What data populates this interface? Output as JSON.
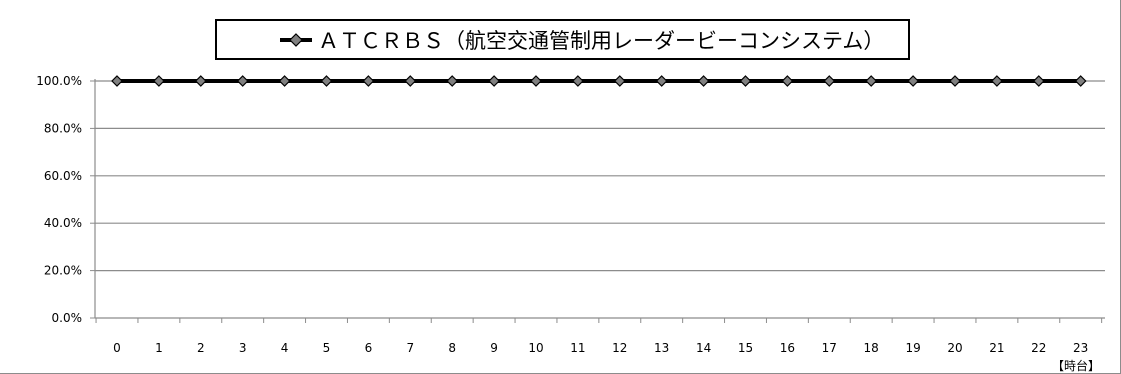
{
  "chart_data": {
    "type": "line",
    "title": "",
    "legend_position": "top",
    "grid": true,
    "xlabel": "【時台】",
    "ylabel": "",
    "categories": [
      "0",
      "1",
      "2",
      "3",
      "4",
      "5",
      "6",
      "7",
      "8",
      "9",
      "10",
      "11",
      "12",
      "13",
      "14",
      "15",
      "16",
      "17",
      "18",
      "19",
      "20",
      "21",
      "22",
      "23"
    ],
    "y_ticks": [
      "0.0%",
      "20.0%",
      "40.0%",
      "60.0%",
      "80.0%",
      "100.0%"
    ],
    "ylim": [
      0,
      100
    ],
    "series": [
      {
        "name": "ＡＴＣＲＢＳ（航空交通管制用レーダービーコンシステム）",
        "values": [
          100,
          100,
          100,
          100,
          100,
          100,
          100,
          100,
          100,
          100,
          100,
          100,
          100,
          100,
          100,
          100,
          100,
          100,
          100,
          100,
          100,
          100,
          100,
          100
        ],
        "color": "#000000",
        "marker": "diamond",
        "marker_color": "#808080"
      }
    ]
  }
}
